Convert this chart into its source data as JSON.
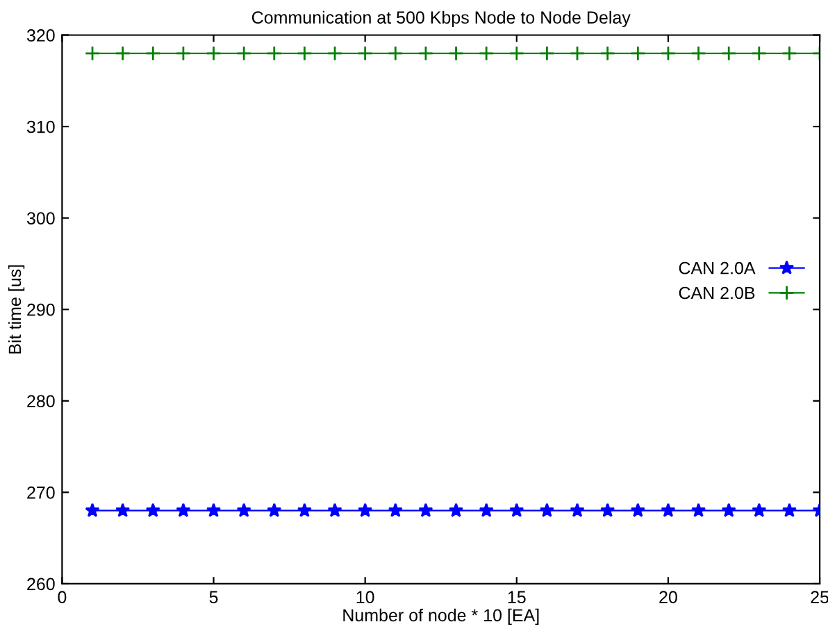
{
  "chart_data": {
    "type": "line",
    "title": "Communication at 500 Kbps Node to Node Delay",
    "xlabel": "Number of node * 10 [EA]",
    "ylabel": "Bit time [us]",
    "x": [
      1,
      2,
      3,
      4,
      5,
      6,
      7,
      8,
      9,
      10,
      11,
      12,
      13,
      14,
      15,
      16,
      17,
      18,
      19,
      20,
      21,
      22,
      23,
      24,
      25
    ],
    "series": [
      {
        "name": "CAN 2.0A",
        "color": "#0000ff",
        "marker": "star",
        "values": [
          268,
          268,
          268,
          268,
          268,
          268,
          268,
          268,
          268,
          268,
          268,
          268,
          268,
          268,
          268,
          268,
          268,
          268,
          268,
          268,
          268,
          268,
          268,
          268,
          268
        ]
      },
      {
        "name": "CAN 2.0B",
        "color": "#008000",
        "marker": "cross",
        "values": [
          318,
          318,
          318,
          318,
          318,
          318,
          318,
          318,
          318,
          318,
          318,
          318,
          318,
          318,
          318,
          318,
          318,
          318,
          318,
          318,
          318,
          318,
          318,
          318,
          318
        ]
      }
    ],
    "xlim": [
      0,
      25
    ],
    "ylim": [
      260,
      320
    ],
    "xticks": [
      0,
      5,
      10,
      15,
      20,
      25
    ],
    "yticks": [
      260,
      270,
      280,
      290,
      300,
      310,
      320
    ],
    "legend": "right",
    "grid": false
  }
}
